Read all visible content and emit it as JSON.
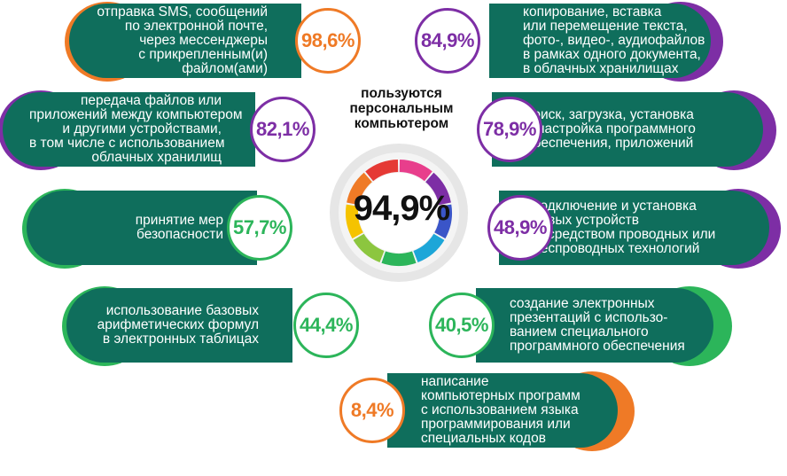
{
  "chart_data": {
    "type": "infographic",
    "title_lines": [
      "пользуются",
      "персональным",
      "компьютером"
    ],
    "center_value": "94,9%",
    "colors": {
      "pill": "#0f6e5c",
      "orange": "#ef7a26",
      "purple": "#7d2ea5",
      "green": "#2cb55a"
    },
    "items": [
      {
        "value": "98,6%",
        "color": "orange",
        "side": "left",
        "lines": [
          "отправка SMS, сообщений",
          "по электронной почте,",
          "через мессенджеры",
          "с прикрепленным(и)",
          "файлом(ами)"
        ]
      },
      {
        "value": "84,9%",
        "color": "purple",
        "side": "right",
        "lines": [
          "копирование, вставка",
          "или перемещение текста,",
          "фото-, видео-, аудиофайлов",
          "в рамках одного документа,",
          "в облачных хранилищах"
        ]
      },
      {
        "value": "82,1%",
        "color": "purple",
        "side": "left",
        "lines": [
          "передача файлов или",
          "приложений между компьютером",
          "и другими устройствами,",
          "в том числе с использованием",
          "облачных хранилищ"
        ]
      },
      {
        "value": "78,9%",
        "color": "purple",
        "side": "right",
        "lines": [
          "поиск, загрузка, установка",
          "и настройка программного",
          "обеспечения, приложений"
        ]
      },
      {
        "value": "57,7%",
        "color": "green",
        "side": "left",
        "lines": [
          "принятие мер",
          "безопасности"
        ]
      },
      {
        "value": "48,9%",
        "color": "purple",
        "side": "right",
        "lines": [
          "подключение и установка",
          "новых устройств",
          "посредством проводных или",
          "беспроводных технологий"
        ]
      },
      {
        "value": "44,4%",
        "color": "green",
        "side": "left",
        "lines": [
          "использование базовых",
          "арифметических формул",
          "в электронных таблицах"
        ]
      },
      {
        "value": "40,5%",
        "color": "green",
        "side": "right",
        "lines": [
          "создание электронных",
          "презентаций с использо-",
          "ванием специального",
          "программного обеспечения"
        ]
      },
      {
        "value": "8,4%",
        "color": "orange",
        "side": "right",
        "lines": [
          "написание",
          "компьютерных программ",
          "с использованием языка",
          "программирования или",
          "специальных кодов"
        ]
      }
    ],
    "ring_colors": [
      "#e83e8c",
      "#7d2ea5",
      "#3a55c8",
      "#1da6d8",
      "#2cb55a",
      "#8cc63f",
      "#f5c300",
      "#ef7a26",
      "#e53935"
    ]
  }
}
